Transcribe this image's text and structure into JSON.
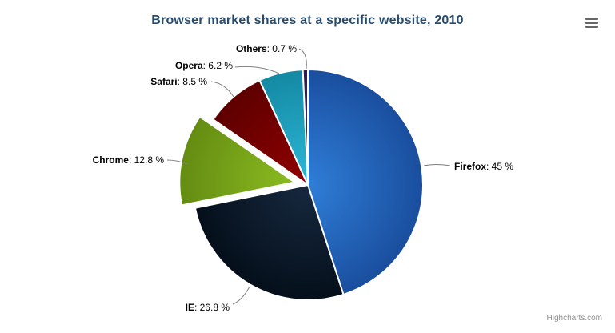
{
  "header": {
    "title": "Browser market shares at a specific website, 2010"
  },
  "menu": {
    "icon": "hamburger-icon"
  },
  "credits": {
    "label": "Highcharts.com"
  },
  "chart_data": {
    "type": "pie",
    "title": "Browser market shares at a specific website, 2010",
    "unit": "%",
    "start_angle_deg": 0,
    "direction": "clockwise",
    "label_format": "name: value %",
    "legend": "none",
    "series": [
      {
        "name": "Firefox",
        "value": 45,
        "color": "#2f7ed8",
        "color_edge": "#1a4e9e",
        "sliced": false
      },
      {
        "name": "IE",
        "value": 26.8,
        "color": "#16293f",
        "color_edge": "#050f1b",
        "sliced": false
      },
      {
        "name": "Chrome",
        "value": 12.8,
        "color": "#8bbc21",
        "color_edge": "#648c12",
        "sliced": true
      },
      {
        "name": "Safari",
        "value": 8.5,
        "color": "#910000",
        "color_edge": "#5e0000",
        "sliced": false
      },
      {
        "name": "Opera",
        "value": 6.2,
        "color": "#2cb8d8",
        "color_edge": "#1489a3",
        "sliced": false
      },
      {
        "name": "Others",
        "value": 0.7,
        "color": "#492970",
        "color_edge": "#33194f",
        "sliced": false
      }
    ],
    "connector_color": "#808080",
    "slice_border_color": "#ffffff"
  }
}
